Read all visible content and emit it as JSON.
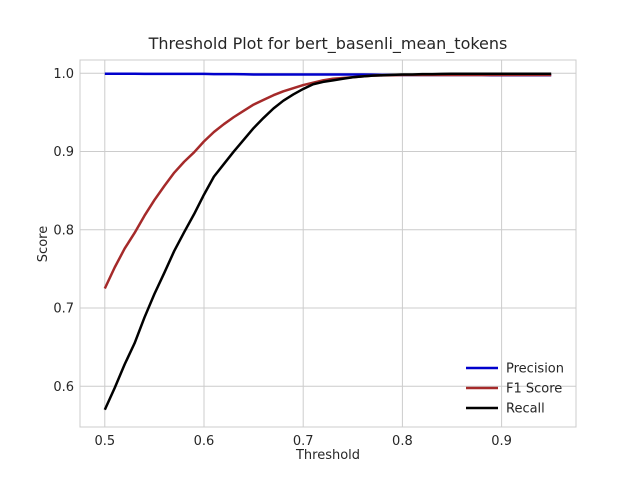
{
  "chart_data": {
    "type": "line",
    "title": "Threshold Plot for bert_basenli_mean_tokens",
    "xlabel": "Threshold",
    "ylabel": "Score",
    "xlim": [
      0.475,
      0.975
    ],
    "ylim": [
      0.548,
      1.017
    ],
    "xticks": [
      0.5,
      0.6,
      0.7,
      0.8,
      0.9
    ],
    "xtick_labels": [
      "0.5",
      "0.6",
      "0.7",
      "0.8",
      "0.9"
    ],
    "yticks": [
      0.6,
      0.7,
      0.8,
      0.9,
      1.0
    ],
    "ytick_labels": [
      "0.6",
      "0.7",
      "0.8",
      "0.9",
      "1.0"
    ],
    "grid": true,
    "legend_position": "lower-right",
    "x": [
      0.5,
      0.51,
      0.52,
      0.53,
      0.54,
      0.55,
      0.56,
      0.57,
      0.58,
      0.59,
      0.6,
      0.61,
      0.62,
      0.63,
      0.64,
      0.65,
      0.66,
      0.67,
      0.68,
      0.69,
      0.7,
      0.71,
      0.72,
      0.73,
      0.74,
      0.75,
      0.76,
      0.77,
      0.78,
      0.79,
      0.8,
      0.81,
      0.82,
      0.83,
      0.84,
      0.85,
      0.86,
      0.87,
      0.88,
      0.89,
      0.9,
      0.91,
      0.92,
      0.93,
      0.94,
      0.95
    ],
    "series": [
      {
        "name": "Precision",
        "color": "#0000cc",
        "values": [
          0.9995,
          0.9995,
          0.9995,
          0.9995,
          0.9993,
          0.9993,
          0.9993,
          0.9993,
          0.9993,
          0.9993,
          0.9993,
          0.999,
          0.999,
          0.999,
          0.9988,
          0.9985,
          0.9985,
          0.9985,
          0.9985,
          0.9985,
          0.9985,
          0.9985,
          0.9985,
          0.9985,
          0.9985,
          0.9985,
          0.9985,
          0.9983,
          0.998,
          0.998,
          0.9978,
          0.9978,
          0.9978,
          0.9978,
          0.9978,
          0.9978,
          0.9978,
          0.9978,
          0.9978,
          0.9975,
          0.9975,
          0.9975,
          0.9975,
          0.9975,
          0.9975,
          0.9975
        ]
      },
      {
        "name": "F1 Score",
        "color": "#a52a2a",
        "values": [
          0.725,
          0.752,
          0.776,
          0.796,
          0.818,
          0.838,
          0.856,
          0.873,
          0.887,
          0.899,
          0.913,
          0.925,
          0.935,
          0.944,
          0.952,
          0.96,
          0.966,
          0.972,
          0.977,
          0.981,
          0.985,
          0.988,
          0.991,
          0.993,
          0.994,
          0.995,
          0.996,
          0.997,
          0.9973,
          0.9975,
          0.9978,
          0.9978,
          0.9978,
          0.9978,
          0.9978,
          0.9978,
          0.9978,
          0.9978,
          0.9978,
          0.9978,
          0.9978,
          0.9978,
          0.9978,
          0.9978,
          0.9978,
          0.9978
        ]
      },
      {
        "name": "Recall",
        "color": "#000000",
        "values": [
          0.57,
          0.598,
          0.628,
          0.655,
          0.688,
          0.718,
          0.745,
          0.773,
          0.797,
          0.82,
          0.845,
          0.868,
          0.884,
          0.9,
          0.915,
          0.93,
          0.943,
          0.955,
          0.965,
          0.973,
          0.98,
          0.986,
          0.989,
          0.991,
          0.993,
          0.995,
          0.996,
          0.997,
          0.9975,
          0.998,
          0.9985,
          0.9985,
          0.999,
          0.999,
          0.9993,
          0.9995,
          0.9995,
          0.9995,
          0.9995,
          0.9995,
          0.9995,
          0.9995,
          0.9995,
          0.9995,
          0.9995,
          0.9995
        ]
      }
    ]
  }
}
